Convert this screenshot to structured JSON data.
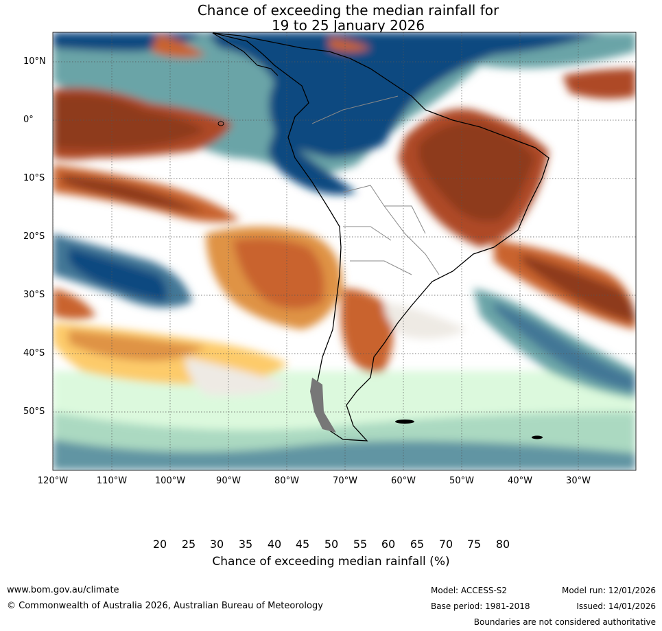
{
  "title": {
    "line1": "Chance of exceeding the median rainfall for",
    "line2": "19 to 25 January 2026"
  },
  "map": {
    "lat_labels": [
      "10°N",
      "0°",
      "10°S",
      "20°S",
      "30°S",
      "40°S",
      "50°S"
    ],
    "lon_labels": [
      "120°W",
      "110°W",
      "100°W",
      "90°W",
      "80°W",
      "70°W",
      "60°W",
      "50°W",
      "40°W",
      "30°W"
    ]
  },
  "colorbar": {
    "ticks": [
      "20",
      "25",
      "30",
      "35",
      "40",
      "45",
      "50",
      "55",
      "60",
      "65",
      "70",
      "75",
      "80"
    ],
    "colors": [
      "#8e3a1d",
      "#ae4a26",
      "#c9632f",
      "#df9345",
      "#fdcb6b",
      "#eeeae4",
      "#ffffff",
      "#ffffff",
      "#e8f4e6",
      "#c5f5c7",
      "#97ccb6",
      "#6aa4a7",
      "#437796",
      "#114a80"
    ],
    "label": "Chance of exceeding median rainfall (%)"
  },
  "footer": {
    "website": "www.bom.gov.au/climate",
    "copyright": "© Commonwealth of Australia 2026, Australian Bureau of Meteorology",
    "model": "Model: ACCESS-S2",
    "base_period": "Base period: 1981-2018",
    "model_run": "Model run: 12/01/2026",
    "issued": "Issued: 14/01/2026",
    "disclaimer": "Boundaries are not considered authoritative"
  }
}
